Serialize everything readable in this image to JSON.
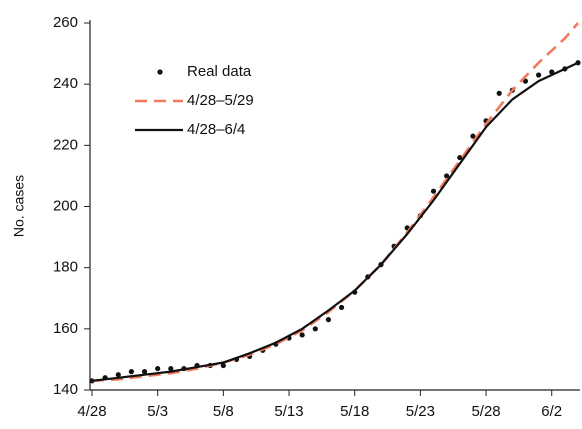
{
  "chart_data": {
    "type": "line",
    "y_label": "No. cases",
    "xlim": [
      0,
      37
    ],
    "ylim": [
      140,
      260
    ],
    "xticks": [
      {
        "value": 0,
        "label": "4/28"
      },
      {
        "value": 5,
        "label": "5/3"
      },
      {
        "value": 10,
        "label": "5/8"
      },
      {
        "value": 15,
        "label": "5/13"
      },
      {
        "value": 20,
        "label": "5/18"
      },
      {
        "value": 25,
        "label": "5/23"
      },
      {
        "value": 30,
        "label": "5/28"
      },
      {
        "value": 35,
        "label": "6/2"
      }
    ],
    "yticks": [
      140,
      160,
      180,
      200,
      220,
      240,
      260
    ],
    "legend": "upper left",
    "series": [
      {
        "name": "Real data",
        "style": "dots",
        "color": "#111111",
        "x": [
          0,
          1,
          2,
          3,
          4,
          5,
          6,
          7,
          8,
          9,
          10,
          11,
          12,
          13,
          14,
          15,
          16,
          17,
          18,
          19,
          20,
          21,
          22,
          23,
          24,
          25,
          26,
          27,
          28,
          29,
          30,
          31,
          32,
          33,
          34,
          35,
          36,
          37
        ],
        "values": [
          143,
          144,
          145,
          146,
          146,
          147,
          147,
          147,
          148,
          148,
          148,
          150,
          151,
          153,
          155,
          157,
          158,
          160,
          163,
          167,
          172,
          177,
          181,
          187,
          193,
          197,
          205,
          210,
          216,
          223,
          228,
          237,
          238,
          241,
          243,
          244,
          245,
          247
        ]
      },
      {
        "name": "4/28–5/29",
        "style": "dashed",
        "color": "#f07a5a",
        "x": [
          0,
          2,
          4,
          6,
          8,
          10,
          12,
          14,
          16,
          18,
          20,
          22,
          24,
          26,
          28,
          30,
          32,
          34,
          36,
          37
        ],
        "values": [
          143,
          143.5,
          144.5,
          145.5,
          147,
          149,
          151.5,
          155,
          159.5,
          165.5,
          172.5,
          181,
          191.5,
          203,
          215,
          227,
          238,
          247,
          255,
          260
        ]
      },
      {
        "name": "4/28–6/4",
        "style": "solid",
        "color": "#111111",
        "x": [
          0,
          2,
          4,
          6,
          8,
          10,
          12,
          14,
          16,
          18,
          20,
          22,
          24,
          26,
          28,
          30,
          32,
          34,
          36,
          37
        ],
        "values": [
          143,
          144,
          145,
          146,
          147.5,
          149,
          152,
          155.5,
          160,
          166,
          172.5,
          181,
          191,
          202,
          214,
          226,
          235,
          241,
          245,
          247
        ]
      }
    ]
  }
}
